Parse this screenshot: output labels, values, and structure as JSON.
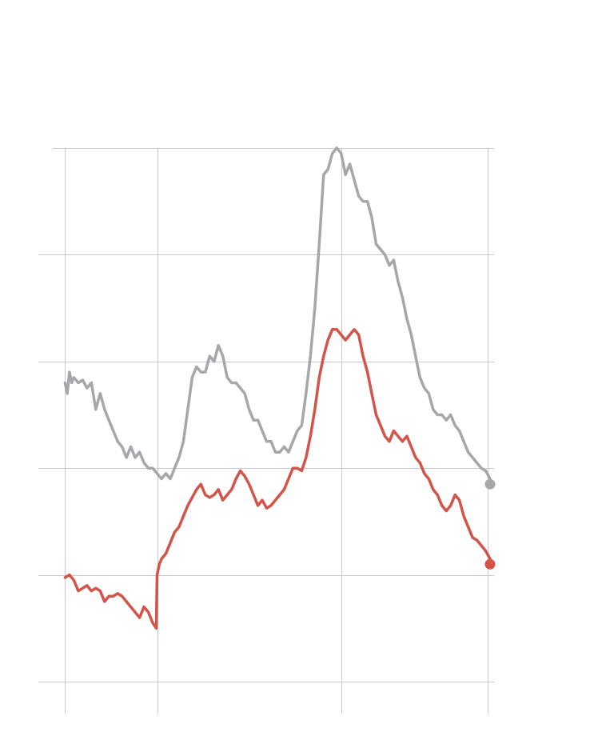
{
  "chart_data": {
    "type": "line",
    "grid": true,
    "xlim": [
      0,
      100
    ],
    "ylim": [
      0,
      100
    ],
    "x_gridlines": [
      3,
      24,
      66,
      99.5
    ],
    "y_gridlines": [
      0,
      20,
      40,
      60,
      80,
      100
    ],
    "colors": {
      "gray": "#a7a7aa",
      "red": "#d4544a",
      "grid": "#c9c9c9"
    },
    "series": [
      {
        "color_key": "gray",
        "points": [
          [
            3,
            56
          ],
          [
            3.5,
            54
          ],
          [
            4,
            58
          ],
          [
            4.5,
            56
          ],
          [
            5,
            57
          ],
          [
            6,
            56
          ],
          [
            7,
            56.5
          ],
          [
            8,
            55
          ],
          [
            9,
            56
          ],
          [
            10,
            51
          ],
          [
            11,
            54
          ],
          [
            12,
            51
          ],
          [
            13,
            49
          ],
          [
            14,
            47
          ],
          [
            15,
            45
          ],
          [
            16,
            44
          ],
          [
            17,
            42
          ],
          [
            18,
            44
          ],
          [
            19,
            42
          ],
          [
            20,
            43
          ],
          [
            21,
            41
          ],
          [
            22,
            40
          ],
          [
            23,
            40
          ],
          [
            24,
            39
          ],
          [
            25,
            38
          ],
          [
            26,
            39
          ],
          [
            27,
            38
          ],
          [
            28,
            40
          ],
          [
            29,
            42
          ],
          [
            30,
            45
          ],
          [
            31,
            51
          ],
          [
            32,
            57
          ],
          [
            33,
            59
          ],
          [
            34,
            58
          ],
          [
            35,
            58
          ],
          [
            36,
            61
          ],
          [
            37,
            60
          ],
          [
            38,
            63
          ],
          [
            39,
            61
          ],
          [
            40,
            57
          ],
          [
            41,
            56
          ],
          [
            42,
            56
          ],
          [
            43,
            55
          ],
          [
            44,
            54
          ],
          [
            45,
            51
          ],
          [
            46,
            49
          ],
          [
            47,
            49
          ],
          [
            48,
            47
          ],
          [
            49,
            45
          ],
          [
            50,
            45
          ],
          [
            51,
            43
          ],
          [
            52,
            43
          ],
          [
            53,
            44
          ],
          [
            54,
            43
          ],
          [
            55,
            45
          ],
          [
            56,
            47
          ],
          [
            57,
            48
          ],
          [
            58,
            54
          ],
          [
            59,
            61
          ],
          [
            60,
            70
          ],
          [
            61,
            82
          ],
          [
            62,
            95
          ],
          [
            63,
            96
          ],
          [
            64,
            99
          ],
          [
            65,
            100
          ],
          [
            66,
            99
          ],
          [
            67,
            95
          ],
          [
            68,
            97
          ],
          [
            69,
            94
          ],
          [
            70,
            91
          ],
          [
            71,
            90
          ],
          [
            72,
            90
          ],
          [
            73,
            87
          ],
          [
            74,
            82
          ],
          [
            75,
            81
          ],
          [
            76,
            80
          ],
          [
            77,
            78
          ],
          [
            78,
            79
          ],
          [
            79,
            75
          ],
          [
            80,
            72
          ],
          [
            81,
            68
          ],
          [
            82,
            65
          ],
          [
            83,
            61
          ],
          [
            84,
            57
          ],
          [
            85,
            55
          ],
          [
            86,
            54
          ],
          [
            87,
            51
          ],
          [
            88,
            50
          ],
          [
            89,
            50
          ],
          [
            90,
            49
          ],
          [
            91,
            50
          ],
          [
            92,
            48
          ],
          [
            93,
            47
          ],
          [
            94,
            45
          ],
          [
            95,
            43
          ],
          [
            96,
            42
          ],
          [
            97,
            41
          ],
          [
            98,
            40
          ],
          [
            99,
            39.5
          ],
          [
            100,
            38
          ]
        ]
      },
      {
        "color_key": "red",
        "points": [
          [
            3,
            19.5
          ],
          [
            4,
            20
          ],
          [
            5,
            19
          ],
          [
            6,
            17
          ],
          [
            7,
            17.5
          ],
          [
            8,
            18
          ],
          [
            9,
            17
          ],
          [
            10,
            17.5
          ],
          [
            11,
            17
          ],
          [
            12,
            15
          ],
          [
            13,
            16
          ],
          [
            14,
            16
          ],
          [
            15,
            16.5
          ],
          [
            16,
            16
          ],
          [
            17,
            15
          ],
          [
            18,
            14
          ],
          [
            19,
            13
          ],
          [
            20,
            12
          ],
          [
            21,
            14
          ],
          [
            22,
            13
          ],
          [
            23,
            11
          ],
          [
            23.8,
            10
          ],
          [
            24,
            20
          ],
          [
            24.5,
            22
          ],
          [
            25,
            23
          ],
          [
            26,
            24
          ],
          [
            27,
            26
          ],
          [
            28,
            28
          ],
          [
            29,
            29
          ],
          [
            30,
            31
          ],
          [
            31,
            33
          ],
          [
            32,
            34.5
          ],
          [
            33,
            36
          ],
          [
            34,
            37
          ],
          [
            35,
            35
          ],
          [
            36,
            34.5
          ],
          [
            37,
            35
          ],
          [
            38,
            36
          ],
          [
            39,
            34
          ],
          [
            40,
            35
          ],
          [
            41,
            36
          ],
          [
            42,
            38
          ],
          [
            43,
            39.5
          ],
          [
            44,
            38.5
          ],
          [
            45,
            37
          ],
          [
            46,
            35
          ],
          [
            47,
            33
          ],
          [
            48,
            34
          ],
          [
            49,
            32.5
          ],
          [
            50,
            33
          ],
          [
            51,
            34
          ],
          [
            52,
            35
          ],
          [
            53,
            36
          ],
          [
            54,
            38
          ],
          [
            55,
            40
          ],
          [
            56,
            40
          ],
          [
            57,
            39.5
          ],
          [
            58,
            42
          ],
          [
            59,
            46
          ],
          [
            60,
            51
          ],
          [
            61,
            57
          ],
          [
            62,
            61
          ],
          [
            63,
            64
          ],
          [
            64,
            66
          ],
          [
            65,
            66
          ],
          [
            66,
            65
          ],
          [
            67,
            64
          ],
          [
            68,
            65
          ],
          [
            69,
            66
          ],
          [
            70,
            65
          ],
          [
            71,
            61
          ],
          [
            72,
            58
          ],
          [
            73,
            54
          ],
          [
            74,
            50
          ],
          [
            75,
            48
          ],
          [
            76,
            46
          ],
          [
            77,
            45
          ],
          [
            78,
            47
          ],
          [
            79,
            46
          ],
          [
            80,
            45
          ],
          [
            81,
            46
          ],
          [
            82,
            44
          ],
          [
            83,
            42
          ],
          [
            84,
            41
          ],
          [
            85,
            39
          ],
          [
            86,
            38
          ],
          [
            87,
            36
          ],
          [
            88,
            35
          ],
          [
            89,
            33
          ],
          [
            90,
            32
          ],
          [
            91,
            33
          ],
          [
            92,
            35
          ],
          [
            93,
            34
          ],
          [
            94,
            31
          ],
          [
            95,
            29
          ],
          [
            96,
            27
          ],
          [
            97,
            26.5
          ],
          [
            98,
            25.5
          ],
          [
            99,
            24.5
          ],
          [
            100,
            23
          ]
        ]
      }
    ],
    "end_markers": [
      {
        "color_key": "gray",
        "x": 100,
        "y": 37
      },
      {
        "color_key": "red",
        "x": 100,
        "y": 22
      }
    ]
  }
}
